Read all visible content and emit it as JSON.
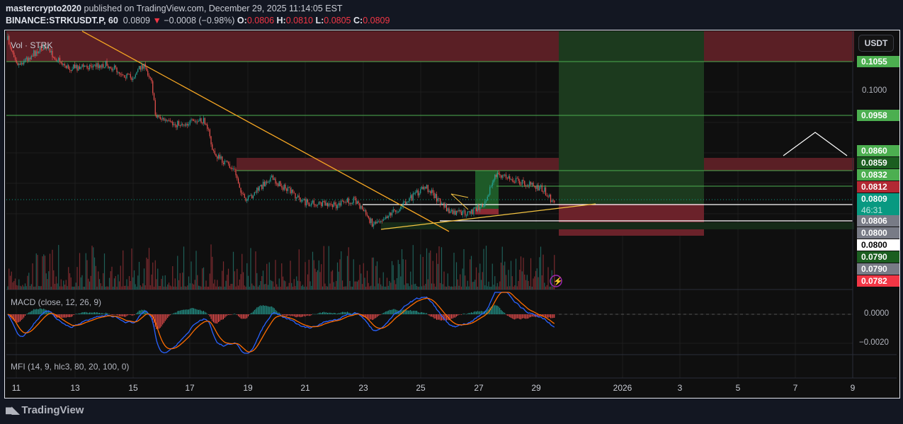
{
  "header": {
    "author": "mastercrypto2020",
    "published_text": "published on TradingView.com, December 29, 2025 11:14:05 EST",
    "symbol": "BINANCE:STRKUSDT.P, 60",
    "last": "0.0809",
    "change": "−0.0008 (−0.98%)",
    "o_label": "O:",
    "o": "0.0806",
    "h_label": "H:",
    "h": "0.0810",
    "l_label": "L:",
    "l": "0.0805",
    "c_label": "C:",
    "c": "0.0809"
  },
  "chart": {
    "volume_label": "Vol · STRK",
    "currency_button": "USDT",
    "scale_tick": "0.1000",
    "countdown": "46:31",
    "price_labels": [
      {
        "value": "0.1055",
        "color": "#4caf50",
        "text": "#ffffff"
      },
      {
        "value": "0.0958",
        "color": "#4caf50",
        "text": "#ffffff"
      },
      {
        "value": "0.0860",
        "color": "#4caf50",
        "text": "#ffffff"
      },
      {
        "value": "0.0859",
        "color": "#1b5e20",
        "text": "#ffffff"
      },
      {
        "value": "0.0832",
        "color": "#4caf50",
        "text": "#ffffff"
      },
      {
        "value": "0.0812",
        "color": "#b22833",
        "text": "#ffffff"
      },
      {
        "value": "0.0809",
        "color": "#089981",
        "text": "#ffffff"
      },
      {
        "value": "0.0806",
        "color": "#787b86",
        "text": "#ffffff"
      },
      {
        "value": "0.0800",
        "color": "#787b86",
        "text": "#ffffff"
      },
      {
        "value": "0.0800",
        "color": "#ffffff",
        "text": "#000000"
      },
      {
        "value": "0.0790",
        "color": "#1b5e20",
        "text": "#ffffff"
      },
      {
        "value": "0.0790",
        "color": "#787b86",
        "text": "#ffffff"
      },
      {
        "value": "0.0782",
        "color": "#f23645",
        "text": "#ffffff"
      }
    ]
  },
  "macd": {
    "label": "MACD (close, 12, 26, 9)",
    "ticks": [
      "0.0000",
      "−0.0020"
    ]
  },
  "mfi": {
    "label": "MFI (14, 9, hlc3, 80, 20, 100, 0)"
  },
  "time_axis": [
    "11",
    "13",
    "15",
    "17",
    "19",
    "21",
    "23",
    "25",
    "27",
    "29",
    "2026",
    "3",
    "5",
    "7",
    "9"
  ],
  "colors": {
    "up": "#26a69a",
    "down": "#ef5350",
    "macd": "#2962ff",
    "signal": "#ff6d00"
  },
  "footer": {
    "brand": "TradingView"
  }
}
